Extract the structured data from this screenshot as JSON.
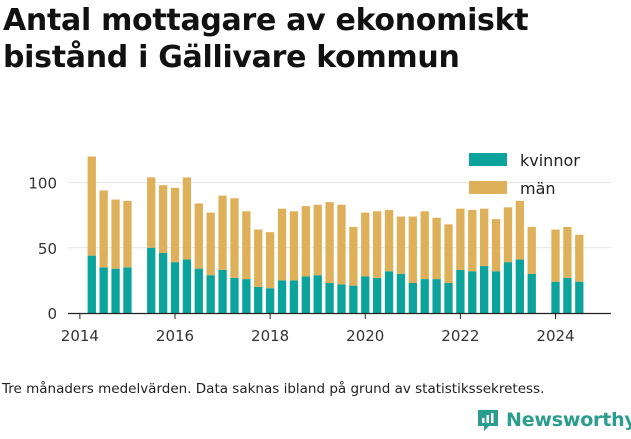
{
  "title": "Antal mottagare av ekonomiskt bistånd i Gällivare kommun",
  "caption": "Tre månaders medelvärden. Data saknas ibland på grund av statistikssekretess.",
  "brand": "Newsworthy",
  "colors": {
    "kvinnor": "#0ba39c",
    "man": "#deb05a",
    "grid": "#e3e3e3",
    "brand": "#2a9d8f"
  },
  "chart_data": {
    "type": "bar",
    "stacked": true,
    "x_ticks": [
      "2014",
      "2016",
      "2018",
      "2020",
      "2022",
      "2024"
    ],
    "y_ticks": [
      "0",
      "50",
      "100"
    ],
    "ylim": [
      0,
      125
    ],
    "xlim": [
      "2013-10",
      "2025-03"
    ],
    "grid": true,
    "legend_position": "top-right",
    "x": [
      "2014-04",
      "2014-07",
      "2014-10",
      "2015-01",
      "2015-07",
      "2015-10",
      "2016-01",
      "2016-04",
      "2016-07",
      "2016-10",
      "2017-01",
      "2017-04",
      "2017-07",
      "2017-10",
      "2018-01",
      "2018-04",
      "2018-07",
      "2018-10",
      "2019-01",
      "2019-04",
      "2019-07",
      "2019-10",
      "2020-01",
      "2020-04",
      "2020-07",
      "2020-10",
      "2021-01",
      "2021-04",
      "2021-07",
      "2021-10",
      "2022-01",
      "2022-04",
      "2022-07",
      "2022-10",
      "2023-01",
      "2023-04",
      "2023-07",
      "2024-01",
      "2024-04",
      "2024-07"
    ],
    "series": [
      {
        "name": "kvinnor",
        "values": [
          44,
          35,
          34,
          35,
          50,
          46,
          39,
          41,
          34,
          29,
          33,
          27,
          26,
          20,
          19,
          25,
          25,
          28,
          29,
          23,
          22,
          21,
          28,
          27,
          32,
          30,
          23,
          26,
          26,
          23,
          33,
          32,
          36,
          32,
          39,
          41,
          30,
          24,
          27,
          24
        ]
      },
      {
        "name": "män",
        "values": [
          76,
          59,
          53,
          51,
          54,
          52,
          57,
          63,
          50,
          48,
          57,
          61,
          52,
          44,
          43,
          55,
          53,
          54,
          54,
          62,
          61,
          45,
          49,
          51,
          47,
          44,
          51,
          52,
          47,
          45,
          47,
          47,
          44,
          40,
          42,
          45,
          36,
          40,
          39,
          36
        ]
      }
    ]
  }
}
